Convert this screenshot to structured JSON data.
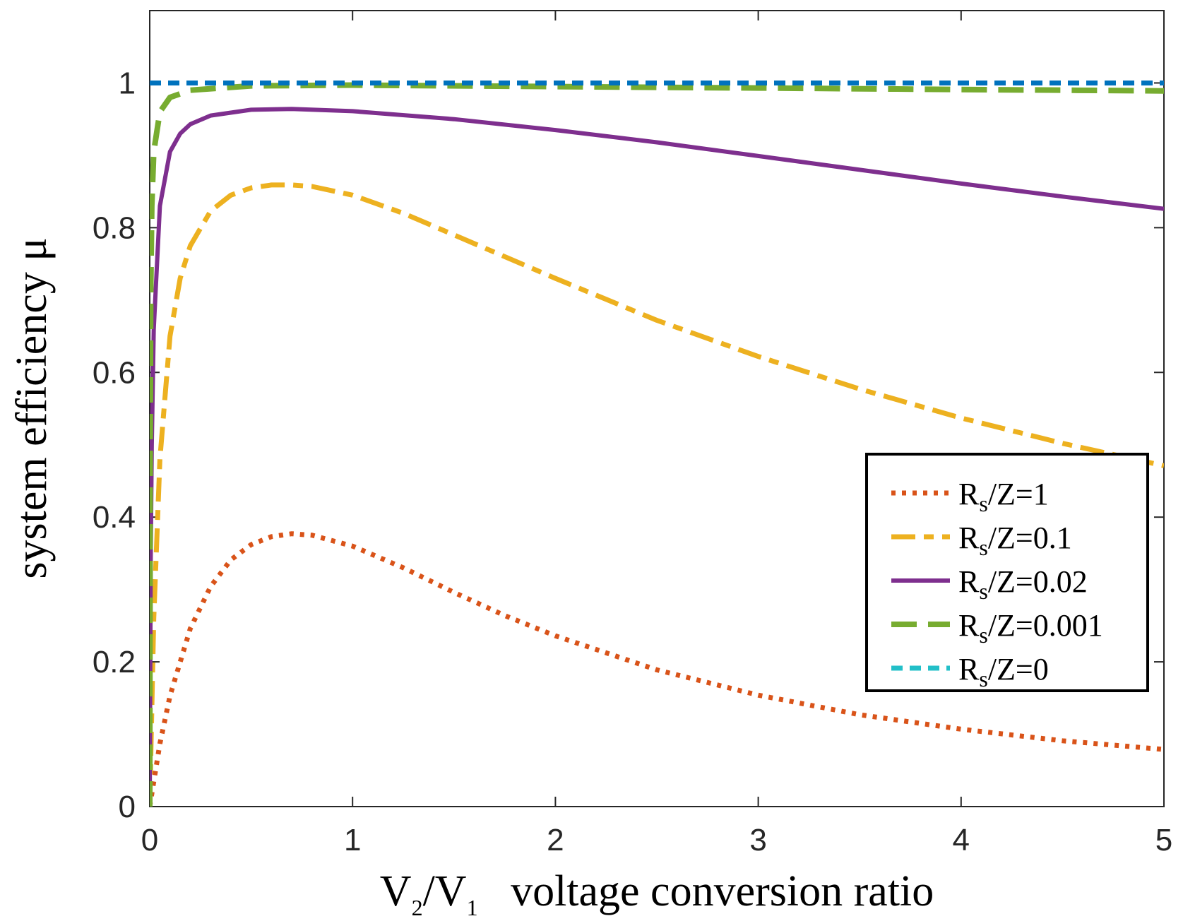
{
  "chart_data": {
    "type": "line",
    "xlabel": {
      "parts": [
        "V",
        "2",
        "/V",
        "1",
        "   voltage conversion ratio"
      ]
    },
    "ylabel": "system efficiency μ",
    "xlim": [
      0,
      5
    ],
    "ylim": [
      0,
      1.1
    ],
    "xticks": [
      0,
      1,
      2,
      3,
      4,
      5
    ],
    "xtick_labels": [
      "0",
      "1",
      "2",
      "3",
      "4",
      "5"
    ],
    "yticks": [
      0,
      0.2,
      0.4,
      0.6,
      0.8,
      1
    ],
    "ytick_labels": [
      "0",
      "0.2",
      "0.4",
      "0.6",
      "0.8",
      "1"
    ],
    "grid": false,
    "legend_position": "right",
    "series": [
      {
        "name": "Rs/Z=1",
        "legend_parts": [
          "R",
          "s",
          "/Z=1"
        ],
        "color": "#D95319",
        "style": "dotted",
        "x": [
          0,
          0.05,
          0.1,
          0.2,
          0.3,
          0.4,
          0.5,
          0.6,
          0.7,
          0.8,
          1.0,
          1.25,
          1.5,
          1.75,
          2.0,
          2.5,
          3.0,
          3.5,
          4.0,
          4.5,
          5.0
        ],
        "y": [
          0,
          0.087,
          0.153,
          0.246,
          0.304,
          0.341,
          0.362,
          0.373,
          0.377,
          0.375,
          0.36,
          0.33,
          0.296,
          0.264,
          0.236,
          0.189,
          0.154,
          0.127,
          0.107,
          0.091,
          0.079
        ]
      },
      {
        "name": "Rs/Z=0.1",
        "legend_parts": [
          "R",
          "s",
          "/Z=0.1"
        ],
        "color": "#EDB120",
        "style": "dashdot",
        "x": [
          0,
          0.02,
          0.05,
          0.1,
          0.15,
          0.2,
          0.3,
          0.4,
          0.5,
          0.6,
          0.7,
          0.8,
          1.0,
          1.25,
          1.5,
          2.0,
          2.5,
          3.0,
          3.5,
          4.0,
          4.5,
          5.0
        ],
        "y": [
          0,
          0.26,
          0.48,
          0.65,
          0.73,
          0.775,
          0.823,
          0.845,
          0.855,
          0.859,
          0.859,
          0.857,
          0.845,
          0.82,
          0.79,
          0.73,
          0.672,
          0.622,
          0.577,
          0.537,
          0.502,
          0.471
        ]
      },
      {
        "name": "Rs/Z=0.02",
        "legend_parts": [
          "R",
          "s",
          "/Z=0.02"
        ],
        "color": "#7E2F8E",
        "style": "solid",
        "x": [
          0,
          0.005,
          0.01,
          0.02,
          0.05,
          0.1,
          0.15,
          0.2,
          0.3,
          0.5,
          0.7,
          1.0,
          1.5,
          2.0,
          2.5,
          3.0,
          3.5,
          4.0,
          4.5,
          5.0
        ],
        "y": [
          0,
          0.34,
          0.5,
          0.66,
          0.83,
          0.905,
          0.93,
          0.943,
          0.955,
          0.963,
          0.964,
          0.961,
          0.95,
          0.935,
          0.918,
          0.899,
          0.88,
          0.861,
          0.843,
          0.826
        ]
      },
      {
        "name": "Rs/Z=0.001",
        "legend_parts": [
          "R",
          "s",
          "/Z=0.001"
        ],
        "color": "#77AC30",
        "style": "dashed",
        "x": [
          0,
          0.002,
          0.005,
          0.01,
          0.02,
          0.05,
          0.1,
          0.2,
          0.5,
          1.0,
          2.0,
          3.0,
          4.0,
          5.0
        ],
        "y": [
          0,
          0.5,
          0.71,
          0.83,
          0.905,
          0.96,
          0.98,
          0.99,
          0.996,
          0.997,
          0.995,
          0.993,
          0.991,
          0.989
        ]
      },
      {
        "name": "Rs/Z=0",
        "legend_parts": [
          "R",
          "s",
          "/Z=0"
        ],
        "color": "#0072BD",
        "legend_color": "#22BFC8",
        "style": "short-dash",
        "x": [
          0,
          5
        ],
        "y": [
          1,
          1
        ]
      }
    ]
  }
}
